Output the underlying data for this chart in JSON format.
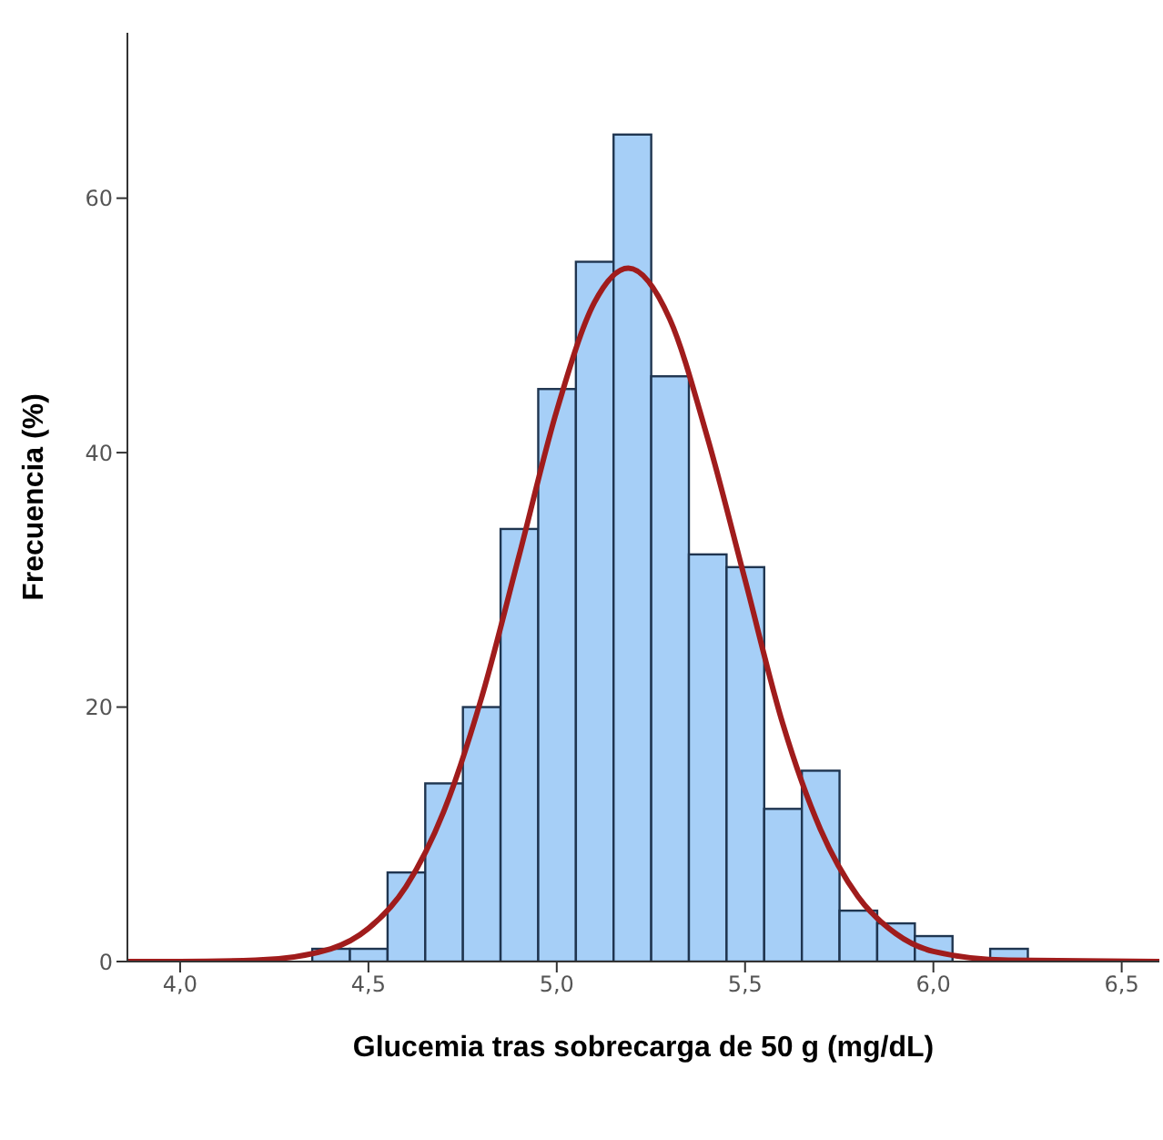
{
  "chart_data": {
    "type": "histogram",
    "xlabel": "Glucemia tras sobrecarga de 50 g (mg/dL)",
    "ylabel": "Frecuencia (%)",
    "bins": [
      4.35,
      4.45,
      4.55,
      4.65,
      4.75,
      4.85,
      4.95,
      5.05,
      5.15,
      5.25,
      5.35,
      5.45,
      5.55,
      5.65,
      5.75,
      5.85,
      5.95,
      6.05,
      6.15,
      6.25
    ],
    "values": [
      1,
      1,
      7,
      14,
      20,
      34,
      45,
      55,
      65,
      46,
      32,
      31,
      12,
      15,
      4,
      3,
      2,
      0,
      1
    ],
    "color": "#a6cff7",
    "series": [
      {
        "type": "line",
        "color": "#a01c1c",
        "x": [
          3.86,
          4.0,
          4.2,
          4.4,
          4.5,
          4.6,
          4.7,
          4.8,
          4.9,
          5.0,
          5.1,
          5.19,
          5.3,
          5.4,
          5.5,
          5.6,
          5.7,
          5.8,
          5.9,
          6.0,
          6.2,
          6.6
        ],
        "values": [
          0,
          0,
          0.1,
          1,
          2.6,
          5.9,
          11.8,
          20.7,
          31.9,
          43.3,
          51.8,
          54.5,
          50.5,
          41.2,
          30,
          18.7,
          10.4,
          5.1,
          2.2,
          0.8,
          0.1,
          0
        ]
      }
    ],
    "xlim": [
      3.86,
      6.6
    ],
    "ylim": [
      0,
      73
    ],
    "xticks": [
      {
        "value": 4,
        "label": "4,0"
      },
      {
        "value": 4.5,
        "label": "4,5"
      },
      {
        "value": 5,
        "label": "5,0"
      },
      {
        "value": 5.5,
        "label": "5,5"
      },
      {
        "value": 6,
        "label": "6,0"
      },
      {
        "value": 6.5,
        "label": "6,5"
      }
    ],
    "yticks": [
      0,
      20,
      40,
      60
    ],
    "marker": "none",
    "line_style": "solid"
  }
}
